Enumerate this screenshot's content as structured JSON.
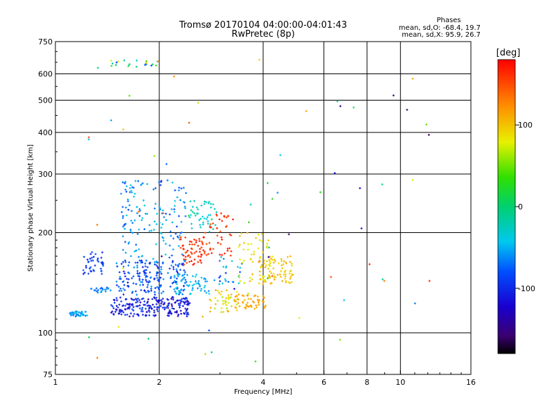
{
  "chart_data": {
    "type": "scatter",
    "title": "Tromsø 20170104 04:00:00-04:01:43",
    "subtitle": "RwPretec (8p)",
    "xlabel": "Frequency [MHz]",
    "ylabel": "Stationary phase Virtual Height [km]",
    "xscale": "log",
    "yscale": "log",
    "xlim": [
      1,
      16
    ],
    "ylim": [
      75,
      750
    ],
    "xticks": [
      1,
      2,
      4,
      6,
      8,
      10,
      16
    ],
    "xtick_labels": [
      "1",
      "2",
      "4",
      "6",
      "8",
      "10",
      "16"
    ],
    "xgrid": [
      2,
      4,
      6,
      8,
      10
    ],
    "yticks": [
      75,
      100,
      200,
      300,
      400,
      500,
      600,
      750
    ],
    "ytick_labels": [
      "75",
      "100",
      "200",
      "300",
      "400",
      "500",
      "600",
      "750"
    ],
    "ygrid": [
      100,
      200,
      300,
      400,
      500,
      600
    ],
    "grid": true,
    "info": {
      "heading": "Phases",
      "line1": "mean, sd,O: -68.4, 19.7",
      "line2": "mean, sd,X:  95.9, 26.7"
    },
    "colorbar": {
      "label": "[deg]",
      "range": [
        -180,
        180
      ],
      "ticks": [
        100,
        0,
        -100
      ],
      "tick_labels": [
        "100",
        "0",
        "-100"
      ]
    },
    "clusters": [
      {
        "f": [
          1.1,
          1.24
        ],
        "h": [
          112,
          116
        ],
        "phase": [
          -70,
          -45
        ],
        "n": 40
      },
      {
        "f": [
          1.2,
          1.38
        ],
        "h": [
          150,
          175
        ],
        "phase": [
          -110,
          -75
        ],
        "n": 40
      },
      {
        "f": [
          1.25,
          1.45
        ],
        "h": [
          132,
          137
        ],
        "phase": [
          -80,
          -55
        ],
        "n": 22
      },
      {
        "f": [
          1.45,
          2.45
        ],
        "h": [
          112,
          128
        ],
        "phase": [
          -140,
          -80
        ],
        "n": 220
      },
      {
        "f": [
          1.5,
          2.4
        ],
        "h": [
          130,
          165
        ],
        "phase": [
          -115,
          -55
        ],
        "n": 200
      },
      {
        "f": [
          1.55,
          2.4
        ],
        "h": [
          165,
          290
        ],
        "phase": [
          -90,
          -35
        ],
        "n": 150
      },
      {
        "f": [
          2.2,
          2.85
        ],
        "h": [
          130,
          150
        ],
        "phase": [
          -65,
          -35
        ],
        "n": 55
      },
      {
        "f": [
          2.3,
          2.7
        ],
        "h": [
          160,
          195
        ],
        "phase": [
          150,
          175
        ],
        "n": 60
      },
      {
        "f": [
          2.45,
          2.95
        ],
        "h": [
          200,
          250
        ],
        "phase": [
          -45,
          -15
        ],
        "n": 45
      },
      {
        "f": [
          2.7,
          3.3
        ],
        "h": [
          170,
          230
        ],
        "phase": [
          150,
          178
        ],
        "n": 45
      },
      {
        "f": [
          2.8,
          3.4
        ],
        "h": [
          115,
          135
        ],
        "phase": [
          60,
          120
        ],
        "n": 45
      },
      {
        "f": [
          2.85,
          3.5
        ],
        "h": [
          140,
          170
        ],
        "phase": [
          -100,
          -30
        ],
        "n": 25
      },
      {
        "f": [
          3.3,
          4.1
        ],
        "h": [
          118,
          130
        ],
        "phase": [
          105,
          125
        ],
        "n": 50
      },
      {
        "f": [
          3.4,
          4.2
        ],
        "h": [
          140,
          200
        ],
        "phase": [
          70,
          110
        ],
        "n": 55
      },
      {
        "f": [
          3.9,
          4.9
        ],
        "h": [
          140,
          170
        ],
        "phase": [
          85,
          115
        ],
        "n": 80
      },
      {
        "f": [
          1.45,
          2.0
        ],
        "h": [
          630,
          660
        ],
        "phase": [
          -100,
          110
        ],
        "n": 22
      },
      {
        "f": [
          1.2,
          12.5
        ],
        "h": [
          80,
          700
        ],
        "phase": [
          -170,
          175
        ],
        "n": 70
      }
    ]
  }
}
